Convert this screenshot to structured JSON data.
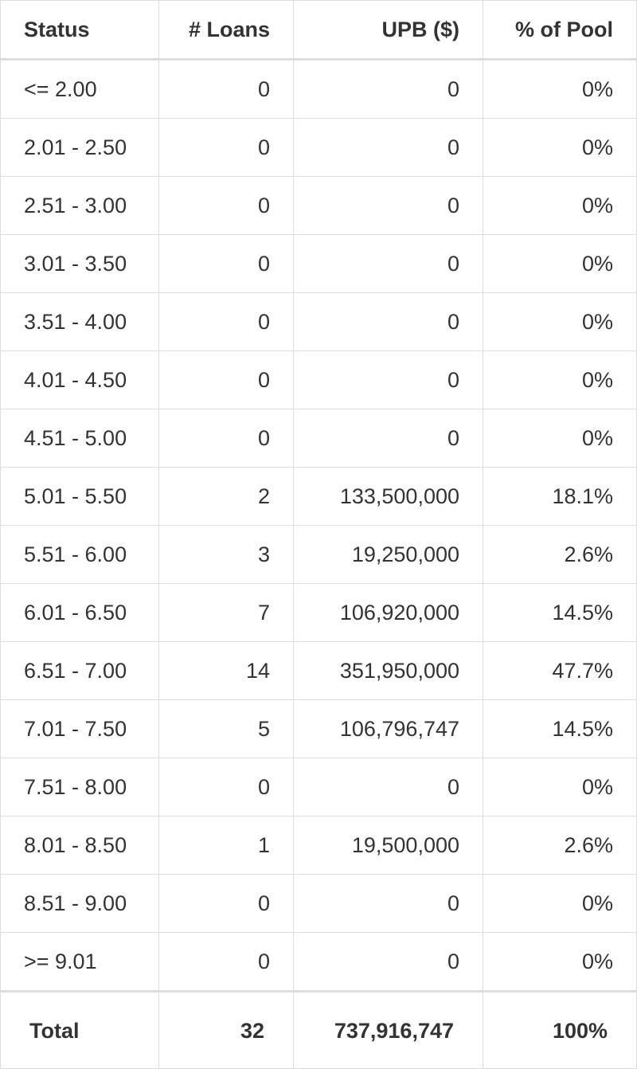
{
  "table": {
    "header": [
      "Status",
      "# Loans",
      "UPB ($)",
      "% of Pool"
    ],
    "rows": [
      [
        "<= 2.00",
        "0",
        "0",
        "0%"
      ],
      [
        "2.01 - 2.50",
        "0",
        "0",
        "0%"
      ],
      [
        "2.51 - 3.00",
        "0",
        "0",
        "0%"
      ],
      [
        "3.01 - 3.50",
        "0",
        "0",
        "0%"
      ],
      [
        "3.51 - 4.00",
        "0",
        "0",
        "0%"
      ],
      [
        "4.01 - 4.50",
        "0",
        "0",
        "0%"
      ],
      [
        "4.51 - 5.00",
        "0",
        "0",
        "0%"
      ],
      [
        "5.01 - 5.50",
        "2",
        "133,500,000",
        "18.1%"
      ],
      [
        "5.51 - 6.00",
        "3",
        "19,250,000",
        "2.6%"
      ],
      [
        "6.01 - 6.50",
        "7",
        "106,920,000",
        "14.5%"
      ],
      [
        "6.51 - 7.00",
        "14",
        "351,950,000",
        "47.7%"
      ],
      [
        "7.01 - 7.50",
        "5",
        "106,796,747",
        "14.5%"
      ],
      [
        "7.51 - 8.00",
        "0",
        "0",
        "0%"
      ],
      [
        "8.01 - 8.50",
        "1",
        "19,500,000",
        "2.6%"
      ],
      [
        "8.51 - 9.00",
        "0",
        "0",
        "0%"
      ],
      [
        ">= 9.01",
        "0",
        "0",
        "0%"
      ]
    ],
    "total": [
      "Total",
      "32",
      "737,916,747",
      "100%"
    ]
  }
}
